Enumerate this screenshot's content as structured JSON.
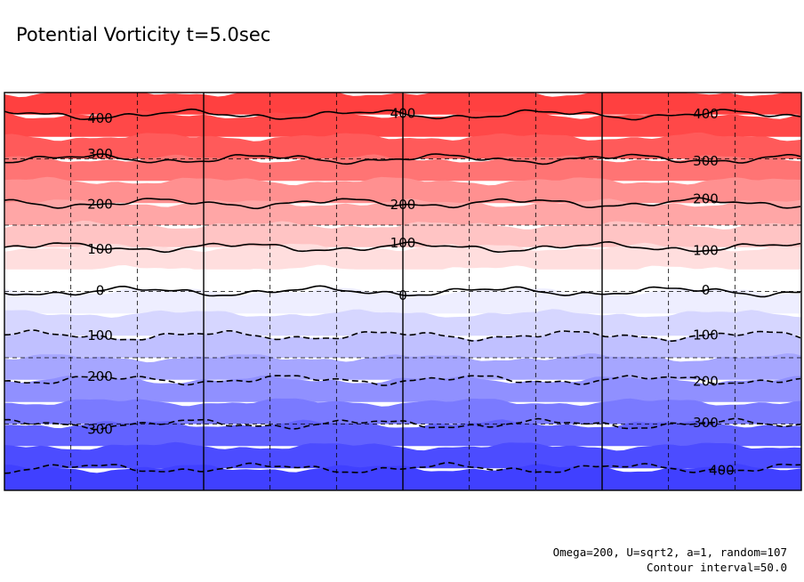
{
  "chart_data": {
    "type": "heatmap",
    "title": "Potential Vorticity t=5.0sec",
    "footer": {
      "params": "Omega=200, U=sqrt2, a=1, random=107",
      "contour_interval": "Contour interval=50.0"
    },
    "xlabel": "",
    "ylabel": "",
    "grid": true,
    "value_range": [
      -450,
      450
    ],
    "contour_interval": 50,
    "color_scale": {
      "positive": "#ff4040",
      "zero": "#ffffff",
      "negative": "#4040ff"
    },
    "bands": [
      {
        "min": 400,
        "max": 450,
        "color": "#ff4040"
      },
      {
        "min": 350,
        "max": 400,
        "color": "#ff4848"
      },
      {
        "min": 300,
        "max": 350,
        "color": "#ff5a5a"
      },
      {
        "min": 250,
        "max": 300,
        "color": "#ff7474"
      },
      {
        "min": 200,
        "max": 250,
        "color": "#ff9090"
      },
      {
        "min": 150,
        "max": 200,
        "color": "#ffa6a6"
      },
      {
        "min": 100,
        "max": 150,
        "color": "#ffc4c4"
      },
      {
        "min": 50,
        "max": 100,
        "color": "#ffdede"
      },
      {
        "min": 0,
        "max": 50,
        "color": "#ffffff"
      },
      {
        "min": -50,
        "max": 0,
        "color": "#eeeeff"
      },
      {
        "min": -100,
        "max": -50,
        "color": "#d6d6ff"
      },
      {
        "min": -150,
        "max": -100,
        "color": "#c0c0ff"
      },
      {
        "min": -200,
        "max": -150,
        "color": "#a6a6ff"
      },
      {
        "min": -250,
        "max": -200,
        "color": "#9090ff"
      },
      {
        "min": -300,
        "max": -250,
        "color": "#7a7aff"
      },
      {
        "min": -350,
        "max": -300,
        "color": "#6262ff"
      },
      {
        "min": -400,
        "max": -350,
        "color": "#4c4cff"
      },
      {
        "min": -450,
        "max": -400,
        "color": "#4040ff"
      }
    ],
    "contours": [
      {
        "level": 400,
        "style": "solid",
        "labels": [
          "400",
          "400",
          "400"
        ]
      },
      {
        "level": 300,
        "style": "solid",
        "labels": [
          "300",
          "300"
        ]
      },
      {
        "level": 200,
        "style": "solid",
        "labels": [
          "200",
          "200",
          "200"
        ]
      },
      {
        "level": 100,
        "style": "solid",
        "labels": [
          "100",
          "100",
          "100"
        ]
      },
      {
        "level": 0,
        "style": "solid",
        "labels": [
          "0",
          "0",
          "0"
        ]
      },
      {
        "level": -100,
        "style": "dashed",
        "labels": [
          "100",
          "100"
        ]
      },
      {
        "level": -200,
        "style": "dashed",
        "labels": [
          "200",
          "200"
        ]
      },
      {
        "level": -300,
        "style": "dashed",
        "labels": [
          "300",
          "300"
        ]
      },
      {
        "level": -400,
        "style": "dashed",
        "labels": [
          "400"
        ]
      }
    ],
    "grid_divisions": {
      "major_x": 4,
      "minor_x": 12,
      "minor_y": 6
    }
  }
}
